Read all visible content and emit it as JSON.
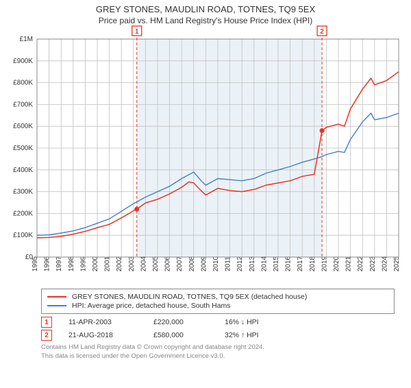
{
  "title": "GREY STONES, MAUDLIN ROAD, TOTNES, TQ9 5EX",
  "subtitle": "Price paid vs. HM Land Registry's House Price Index (HPI)",
  "chart": {
    "background_color": "#ffffff",
    "grid_color": "#bfbfbf",
    "band_color": "#dbe7f0",
    "ylim": [
      0,
      1000000
    ],
    "ytick_step": 100000,
    "ylabels": [
      "£0",
      "£100K",
      "£200K",
      "£300K",
      "£400K",
      "£500K",
      "£600K",
      "£700K",
      "£800K",
      "£900K",
      "£1M"
    ],
    "xlim": [
      1995,
      2025
    ],
    "xticks": [
      1995,
      1996,
      1997,
      1998,
      1999,
      2000,
      2001,
      2002,
      2003,
      2004,
      2005,
      2006,
      2007,
      2008,
      2009,
      2010,
      2011,
      2012,
      2013,
      2014,
      2015,
      2016,
      2017,
      2018,
      2019,
      2020,
      2021,
      2022,
      2023,
      2024,
      2025
    ],
    "series_hpi": {
      "color": "#437fca",
      "width": 1.4,
      "data": [
        [
          1995,
          100000
        ],
        [
          1996,
          102000
        ],
        [
          1997,
          110000
        ],
        [
          1998,
          120000
        ],
        [
          1999,
          135000
        ],
        [
          2000,
          155000
        ],
        [
          2001,
          175000
        ],
        [
          2002,
          210000
        ],
        [
          2003,
          245000
        ],
        [
          2004,
          275000
        ],
        [
          2005,
          300000
        ],
        [
          2006,
          325000
        ],
        [
          2007,
          360000
        ],
        [
          2008,
          390000
        ],
        [
          2008.7,
          345000
        ],
        [
          2009,
          330000
        ],
        [
          2010,
          360000
        ],
        [
          2011,
          355000
        ],
        [
          2012,
          350000
        ],
        [
          2013,
          360000
        ],
        [
          2014,
          385000
        ],
        [
          2015,
          400000
        ],
        [
          2016,
          415000
        ],
        [
          2017,
          435000
        ],
        [
          2018,
          450000
        ],
        [
          2018.6,
          460000
        ],
        [
          2019,
          470000
        ],
        [
          2020,
          485000
        ],
        [
          2020.5,
          480000
        ],
        [
          2021,
          540000
        ],
        [
          2022,
          620000
        ],
        [
          2022.7,
          660000
        ],
        [
          2023,
          630000
        ],
        [
          2024,
          640000
        ],
        [
          2025,
          660000
        ]
      ]
    },
    "series_price": {
      "color": "#ea3323",
      "width": 1.5,
      "data": [
        [
          1995,
          88000
        ],
        [
          1996,
          90000
        ],
        [
          1997,
          95000
        ],
        [
          1998,
          105000
        ],
        [
          1999,
          118000
        ],
        [
          2000,
          135000
        ],
        [
          2001,
          150000
        ],
        [
          2002,
          180000
        ],
        [
          2003,
          212000
        ],
        [
          2003.28,
          220000
        ],
        [
          2004,
          248000
        ],
        [
          2005,
          265000
        ],
        [
          2006,
          290000
        ],
        [
          2007,
          320000
        ],
        [
          2007.6,
          345000
        ],
        [
          2008,
          340000
        ],
        [
          2008.7,
          300000
        ],
        [
          2009,
          285000
        ],
        [
          2010,
          315000
        ],
        [
          2011,
          305000
        ],
        [
          2012,
          300000
        ],
        [
          2013,
          310000
        ],
        [
          2014,
          330000
        ],
        [
          2015,
          340000
        ],
        [
          2016,
          350000
        ],
        [
          2017,
          370000
        ],
        [
          2018,
          380000
        ],
        [
          2018.64,
          580000
        ],
        [
          2019,
          595000
        ],
        [
          2020,
          610000
        ],
        [
          2020.5,
          600000
        ],
        [
          2021,
          680000
        ],
        [
          2022,
          770000
        ],
        [
          2022.7,
          820000
        ],
        [
          2023,
          790000
        ],
        [
          2024,
          810000
        ],
        [
          2025,
          850000
        ]
      ]
    },
    "sale_band": {
      "start": 2003.28,
      "end": 2018.64
    },
    "sale_markers": [
      {
        "label": "1",
        "x": 2003.28,
        "y_box": 1015000
      },
      {
        "label": "2",
        "x": 2018.64,
        "y_box": 1015000
      }
    ],
    "sale_points": [
      {
        "x": 2003.28,
        "y": 220000
      },
      {
        "x": 2018.64,
        "y": 580000
      }
    ]
  },
  "legend": {
    "items": [
      {
        "color": "#ea3323",
        "label": "GREY STONES, MAUDLIN ROAD, TOTNES, TQ9 5EX (detached house)"
      },
      {
        "color": "#437fca",
        "label": "HPI: Average price, detached house, South Hams"
      }
    ]
  },
  "transactions": [
    {
      "badge": "1",
      "date": "11-APR-2003",
      "price": "£220,000",
      "delta": "16% ↓ HPI"
    },
    {
      "badge": "2",
      "date": "21-AUG-2018",
      "price": "£580,000",
      "delta": "32% ↑ HPI"
    }
  ],
  "footer_line1": "Contains HM Land Registry data © Crown copyright and database right 2024.",
  "footer_line2": "This data is licensed under the Open Government Licence v3.0."
}
